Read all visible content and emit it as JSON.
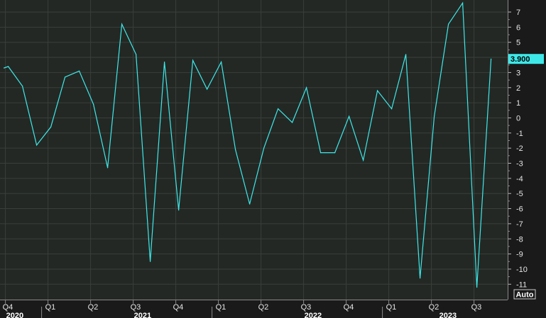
{
  "chart_data": {
    "type": "line",
    "title": "",
    "xlabel": "",
    "ylabel": "",
    "ylim": [
      -11.5,
      7.7
    ],
    "y_ticks": [
      7,
      6,
      5,
      4,
      3,
      2,
      1,
      0,
      -1,
      -2,
      -3,
      -4,
      -5,
      -6,
      -7,
      -8,
      -9,
      -10,
      -11
    ],
    "grid": true,
    "line_color": "#3ee8e8",
    "last_value_label": "3.900",
    "scale_button": "Auto",
    "x_quarter_labels": [
      {
        "label": "Q4",
        "t": -1.0
      },
      {
        "label": "Q1",
        "t": 2.0
      },
      {
        "label": "Q2",
        "t": 5.0
      },
      {
        "label": "Q3",
        "t": 8.0
      },
      {
        "label": "Q4",
        "t": 11.0
      },
      {
        "label": "Q1",
        "t": 14.0
      },
      {
        "label": "Q2",
        "t": 17.0
      },
      {
        "label": "Q3",
        "t": 20.0
      },
      {
        "label": "Q4",
        "t": 23.0
      },
      {
        "label": "Q1",
        "t": 26.0
      },
      {
        "label": "Q2",
        "t": 29.0
      },
      {
        "label": "Q3",
        "t": 32.0
      }
    ],
    "x_year_labels": [
      {
        "label": "2020",
        "t": -1.0
      },
      {
        "label": "2021",
        "t": 8.0
      },
      {
        "label": "2022",
        "t": 20.0
      },
      {
        "label": "2023",
        "t": 29.5
      }
    ],
    "series": [
      {
        "t": [
          -1.1,
          -0.8,
          0.2,
          1.2,
          2.2,
          3.2,
          4.2,
          5.2,
          6.2,
          7.2,
          8.2,
          9.2,
          10.2,
          11.2,
          12.2,
          13.2,
          14.2,
          15.2,
          16.2,
          17.2,
          18.2,
          19.2,
          20.2,
          21.2,
          22.2,
          23.2,
          24.2,
          25.2,
          26.2,
          27.2,
          28.2,
          29.2,
          30.2,
          31.2,
          32.2,
          33.2
        ],
        "values": [
          3.3,
          3.4,
          2.1,
          -1.8,
          -0.6,
          2.7,
          3.1,
          0.9,
          -3.3,
          6.2,
          4.2,
          -9.5,
          3.7,
          -6.1,
          3.8,
          1.9,
          3.7,
          -2.1,
          -5.7,
          -2.0,
          0.6,
          -0.3,
          2.0,
          -2.3,
          -2.3,
          0.1,
          -2.8,
          1.8,
          0.6,
          4.2,
          -10.6,
          0.1,
          6.2,
          7.6,
          -11.2,
          3.9
        ]
      }
    ]
  }
}
